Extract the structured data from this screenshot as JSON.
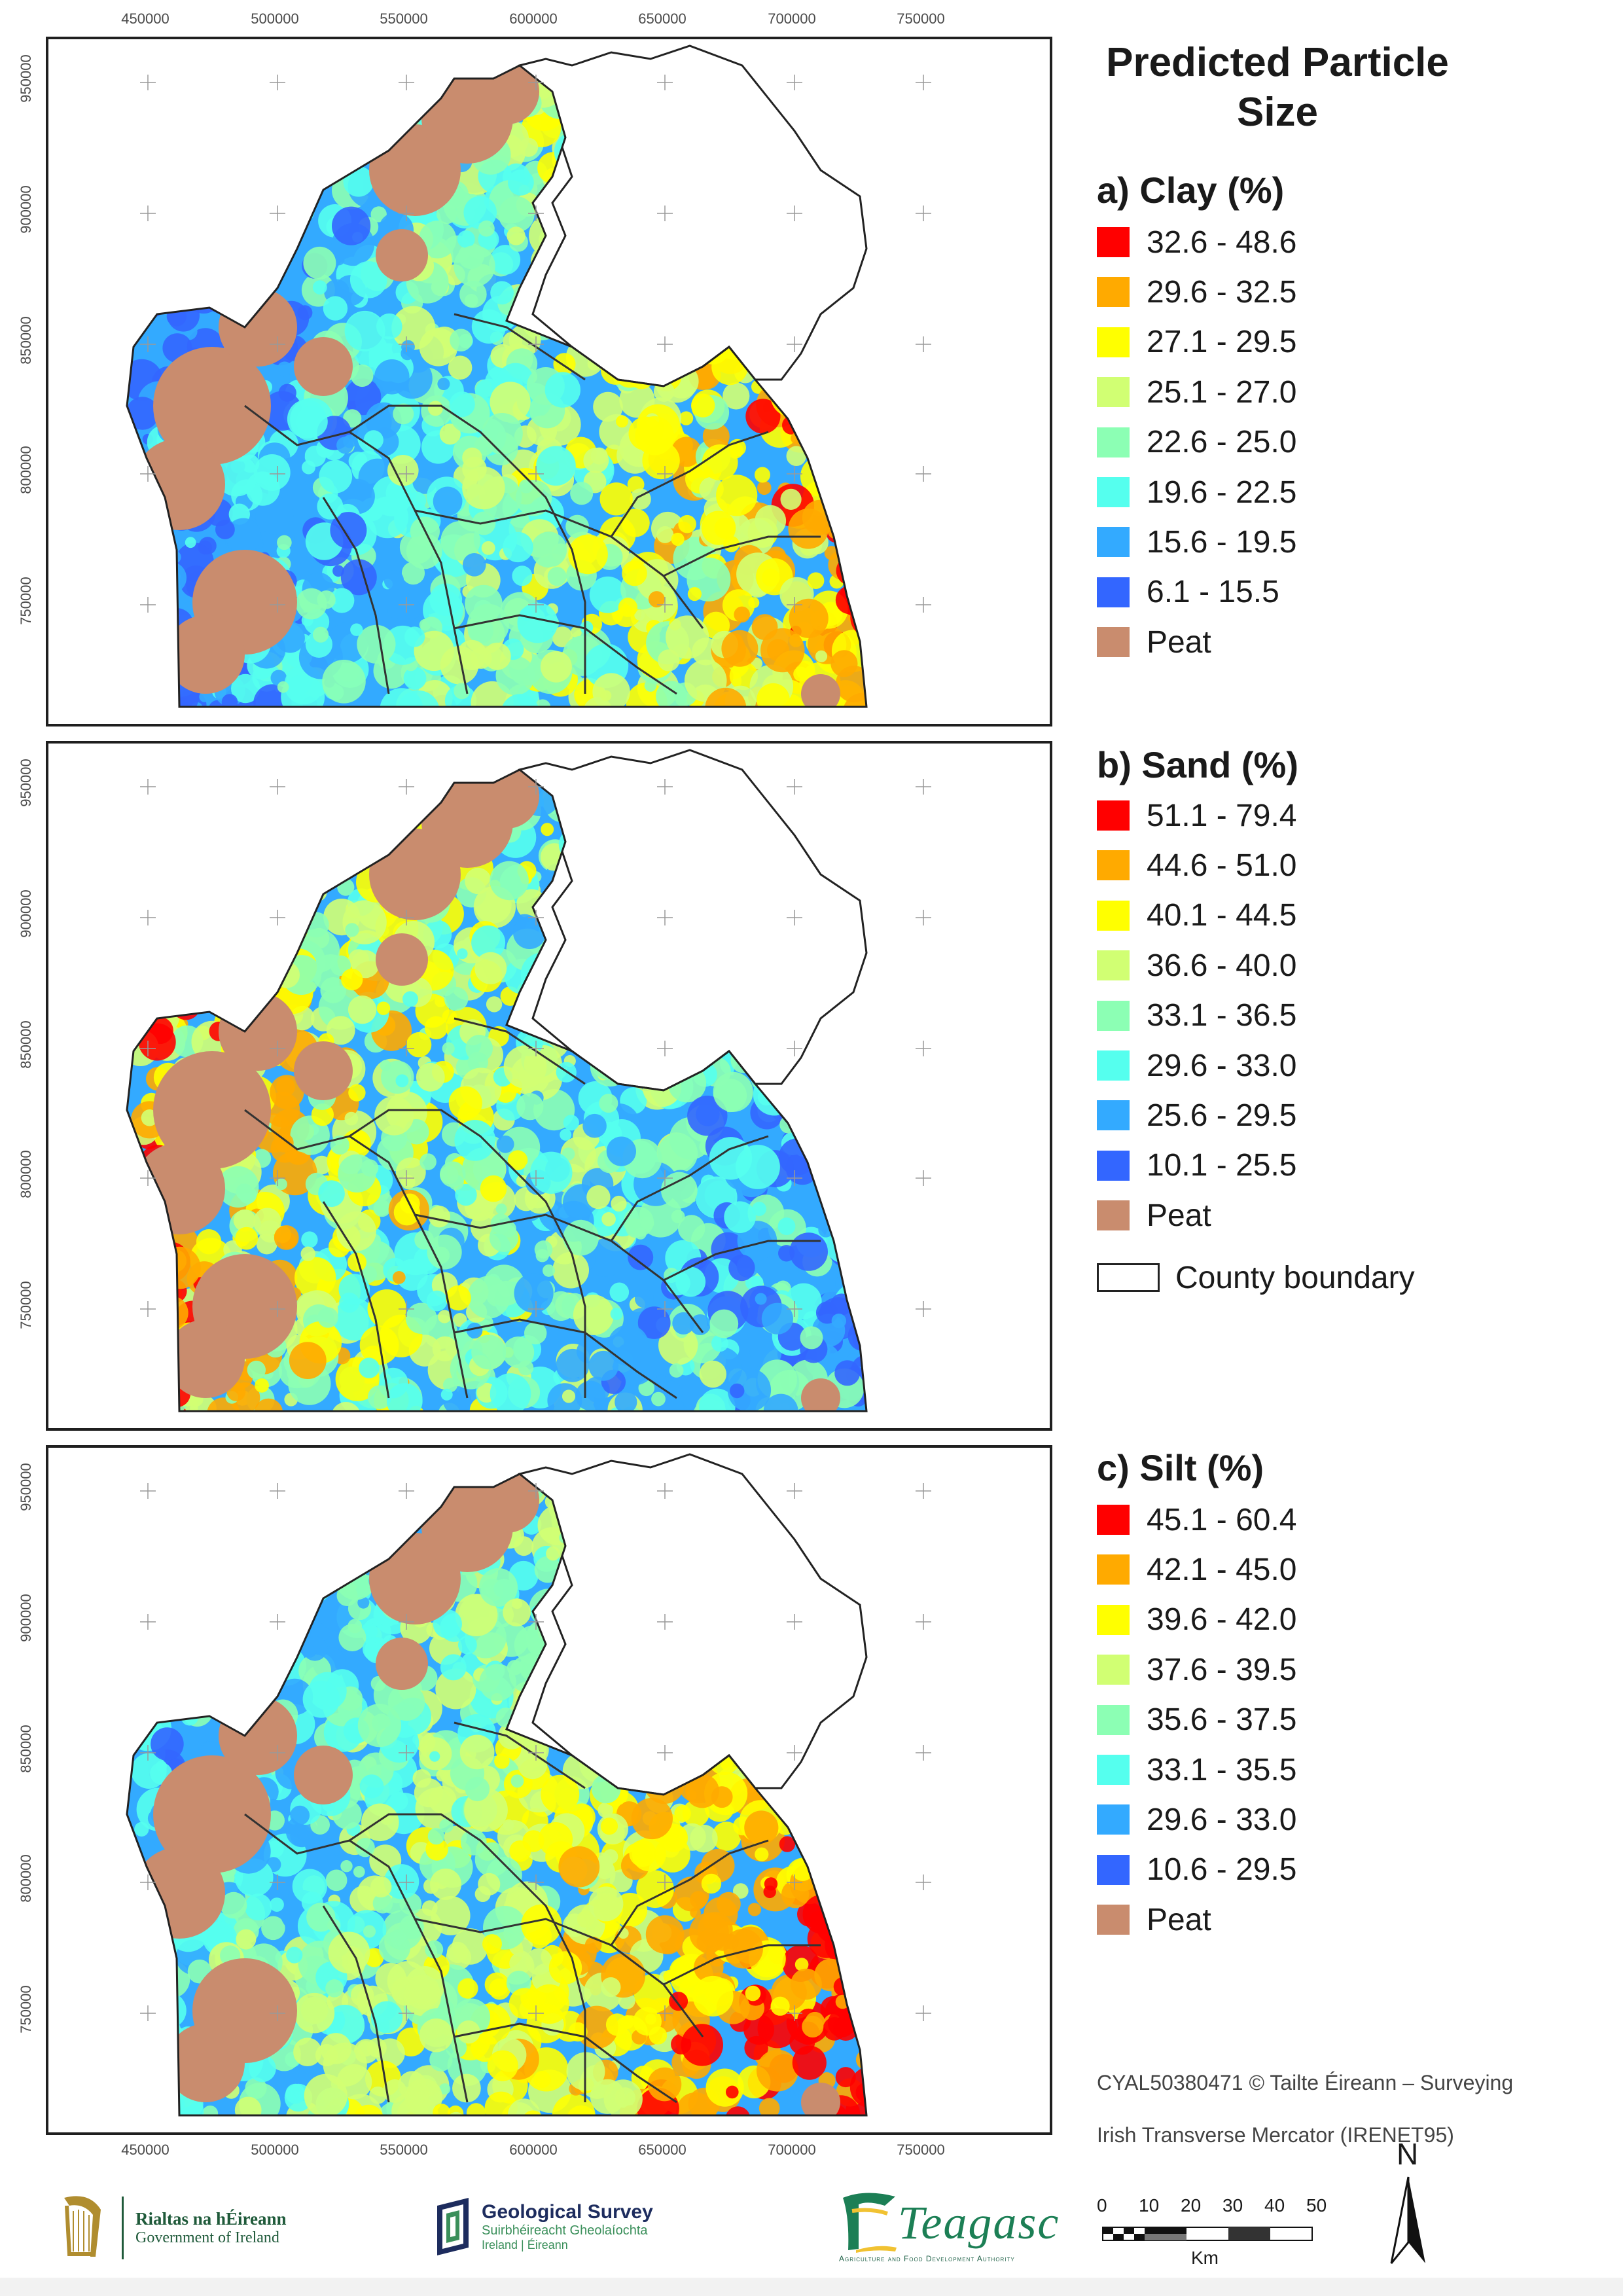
{
  "map_axes": {
    "x_ticks": [
      "450000",
      "500000",
      "550000",
      "600000",
      "650000",
      "700000",
      "750000"
    ],
    "y_ticks": [
      "950000",
      "900000",
      "850000",
      "800000",
      "750000"
    ]
  },
  "legend": {
    "title_line1": "Predicted Particle",
    "title_line2": "Size",
    "clay": {
      "title": "a) Clay (%)",
      "classes": [
        {
          "label": "32.6 - 48.6",
          "color": "#ff0000"
        },
        {
          "label": "29.6 - 32.5",
          "color": "#ffaa00"
        },
        {
          "label": "27.1 - 29.5",
          "color": "#ffff00"
        },
        {
          "label": "25.1 - 27.0",
          "color": "#d1ff73"
        },
        {
          "label": "22.6 - 25.0",
          "color": "#8cffb4"
        },
        {
          "label": "19.6 - 22.5",
          "color": "#55ffee"
        },
        {
          "label": "15.6 - 19.5",
          "color": "#33aaff"
        },
        {
          "label": "6.1 - 15.5",
          "color": "#3366ff"
        },
        {
          "label": "Peat",
          "color": "#c98c6e"
        }
      ]
    },
    "sand": {
      "title": "b) Sand (%)",
      "classes": [
        {
          "label": "51.1 - 79.4",
          "color": "#ff0000"
        },
        {
          "label": "44.6 - 51.0",
          "color": "#ffaa00"
        },
        {
          "label": "40.1 - 44.5",
          "color": "#ffff00"
        },
        {
          "label": "36.6 - 40.0",
          "color": "#d1ff73"
        },
        {
          "label": "33.1 - 36.5",
          "color": "#8cffb4"
        },
        {
          "label": "29.6 - 33.0",
          "color": "#55ffee"
        },
        {
          "label": "25.6 - 29.5",
          "color": "#33aaff"
        },
        {
          "label": "10.1 - 25.5",
          "color": "#3366ff"
        },
        {
          "label": "Peat",
          "color": "#c98c6e"
        }
      ]
    },
    "county_boundary": "County boundary",
    "silt": {
      "title": "c) Silt (%)",
      "classes": [
        {
          "label": "45.1 - 60.4",
          "color": "#ff0000"
        },
        {
          "label": "42.1 - 45.0",
          "color": "#ffaa00"
        },
        {
          "label": "39.6 - 42.0",
          "color": "#ffff00"
        },
        {
          "label": "37.6 - 39.5",
          "color": "#d1ff73"
        },
        {
          "label": "35.6 - 37.5",
          "color": "#8cffb4"
        },
        {
          "label": "33.1 - 35.5",
          "color": "#55ffee"
        },
        {
          "label": "29.6 - 33.0",
          "color": "#33aaff"
        },
        {
          "label": "10.6 - 29.5",
          "color": "#3366ff"
        },
        {
          "label": "Peat",
          "color": "#c98c6e"
        }
      ]
    }
  },
  "copyright": "CYAL50380471 © Tailte Éireann – Surveying",
  "projection": "Irish Transverse Mercator (IRENET95)",
  "scale_bar": {
    "ticks": [
      "0",
      "10",
      "20",
      "30",
      "40",
      "50"
    ],
    "unit": "Km"
  },
  "north_label": "N",
  "logos": {
    "gov_line1": "Rialtas na hÉireann",
    "gov_line2": "Government of Ireland",
    "gsi_line1": "Geological Survey",
    "gsi_line2": "Suirbhéireacht Gheolaíochta",
    "gsi_line3": "Ireland | Éireann",
    "teagasc_word": "Teagasc",
    "teagasc_sub": "Agriculture and Food Development Authority"
  }
}
